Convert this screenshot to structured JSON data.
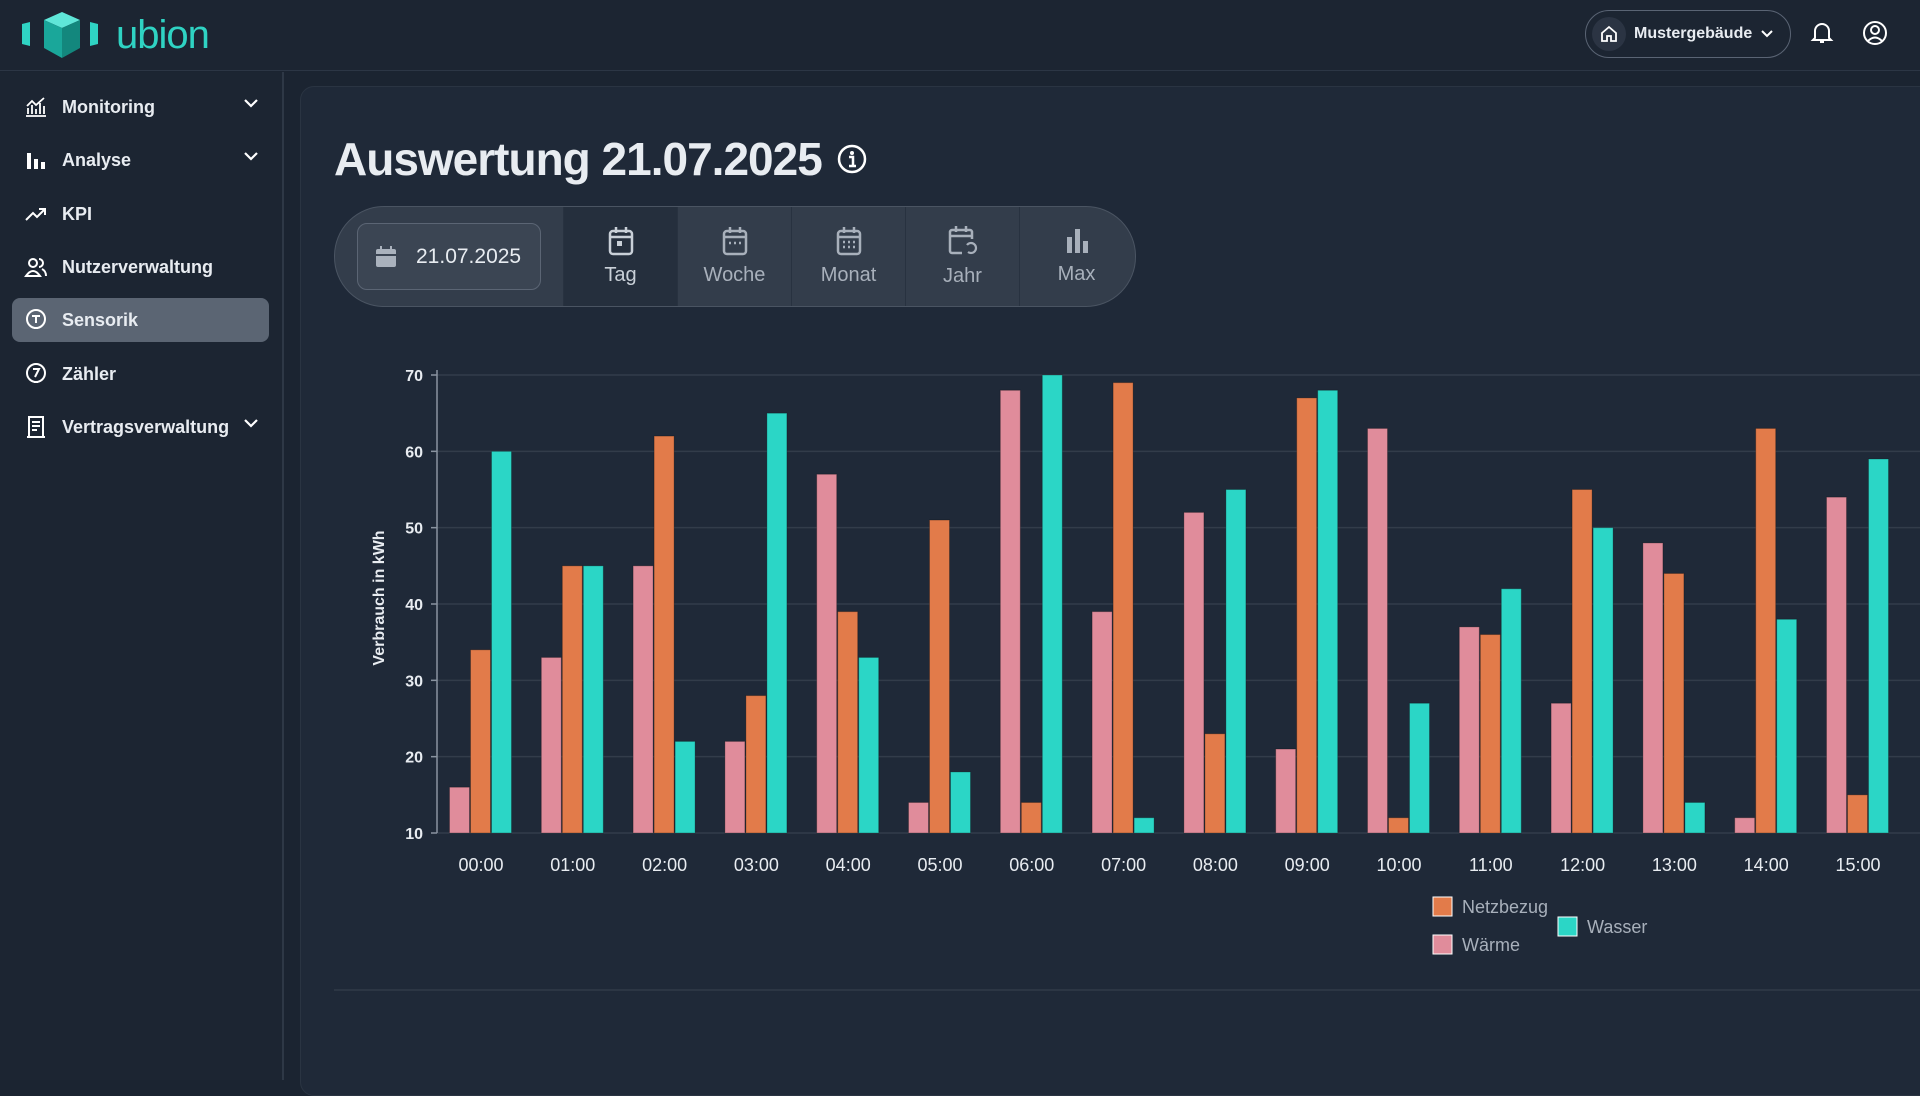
{
  "brand": {
    "name": "ubion",
    "color": "#2fd3c3"
  },
  "header": {
    "building": "Mustergebäude",
    "icons": [
      "home-icon",
      "chevron-down-icon",
      "bell-icon",
      "user-circle-icon"
    ]
  },
  "sidebar": {
    "items": [
      {
        "label": "Monitoring",
        "icon": "line-chart-icon",
        "expandable": true
      },
      {
        "label": "Analyse",
        "icon": "bar-chart-icon",
        "expandable": true
      },
      {
        "label": "KPI",
        "icon": "trend-up-icon",
        "expandable": false
      },
      {
        "label": "Nutzerverwaltung",
        "icon": "users-icon",
        "expandable": false
      },
      {
        "label": "Sensorik",
        "icon": "sensor-icon",
        "expandable": false,
        "active": true
      },
      {
        "label": "Zähler",
        "icon": "meter-icon",
        "expandable": false
      },
      {
        "label": "Vertragsverwaltung",
        "icon": "document-icon",
        "expandable": true
      }
    ]
  },
  "main": {
    "title": "Auswertung 21.07.2025",
    "date": "21.07.2025",
    "periods": [
      {
        "label": "Tag",
        "active": true
      },
      {
        "label": "Woche"
      },
      {
        "label": "Monat"
      },
      {
        "label": "Jahr"
      },
      {
        "label": "Max"
      }
    ]
  },
  "chart_data": {
    "type": "bar",
    "ylabel": "Verbrauch in kWh",
    "ylim": [
      10,
      70
    ],
    "yticks": [
      10,
      20,
      30,
      40,
      50,
      60,
      70
    ],
    "grid": true,
    "legend": "bottom-right",
    "categories": [
      "00:00",
      "01:00",
      "02:00",
      "03:00",
      "04:00",
      "05:00",
      "06:00",
      "07:00",
      "08:00",
      "09:00",
      "10:00",
      "11:00",
      "12:00",
      "13:00",
      "14:00",
      "15:00"
    ],
    "series": [
      {
        "name": "Wärme",
        "color": "#e08c9b",
        "values": [
          16,
          33,
          45,
          22,
          57,
          14,
          68,
          39,
          52,
          21,
          63,
          37,
          27,
          48,
          12,
          54
        ]
      },
      {
        "name": "Netzbezug",
        "color": "#e27b4a",
        "values": [
          34,
          45,
          62,
          28,
          39,
          51,
          14,
          69,
          23,
          67,
          12,
          36,
          55,
          44,
          63,
          15
        ]
      },
      {
        "name": "Wasser",
        "color": "#2bd6c6",
        "values": [
          60,
          45,
          22,
          65,
          33,
          18,
          70,
          12,
          55,
          68,
          27,
          42,
          50,
          14,
          38,
          59
        ]
      }
    ]
  }
}
